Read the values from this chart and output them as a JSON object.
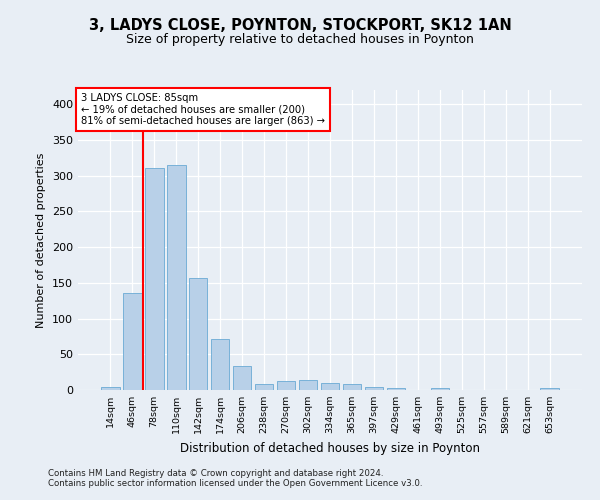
{
  "title": "3, LADYS CLOSE, POYNTON, STOCKPORT, SK12 1AN",
  "subtitle": "Size of property relative to detached houses in Poynton",
  "xlabel": "Distribution of detached houses by size in Poynton",
  "ylabel": "Number of detached properties",
  "categories": [
    "14sqm",
    "46sqm",
    "78sqm",
    "110sqm",
    "142sqm",
    "174sqm",
    "206sqm",
    "238sqm",
    "270sqm",
    "302sqm",
    "334sqm",
    "365sqm",
    "397sqm",
    "429sqm",
    "461sqm",
    "493sqm",
    "525sqm",
    "557sqm",
    "589sqm",
    "621sqm",
    "653sqm"
  ],
  "values": [
    4,
    136,
    311,
    315,
    157,
    71,
    33,
    9,
    13,
    14,
    10,
    8,
    4,
    3,
    0,
    3,
    0,
    0,
    0,
    0,
    3
  ],
  "bar_color": "#b8d0e8",
  "bar_edge_color": "#6aaad4",
  "vline_x": 1.5,
  "annotation_text_line1": "3 LADYS CLOSE: 85sqm",
  "annotation_text_line2": "← 19% of detached houses are smaller (200)",
  "annotation_text_line3": "81% of semi-detached houses are larger (863) →",
  "annotation_box_color": "white",
  "annotation_box_edgecolor": "red",
  "vline_color": "red",
  "ylim": [
    0,
    420
  ],
  "yticks": [
    0,
    50,
    100,
    150,
    200,
    250,
    300,
    350,
    400
  ],
  "footer1": "Contains HM Land Registry data © Crown copyright and database right 2024.",
  "footer2": "Contains public sector information licensed under the Open Government Licence v3.0.",
  "background_color": "#e8eef5",
  "plot_bg_color": "#e8eef5"
}
